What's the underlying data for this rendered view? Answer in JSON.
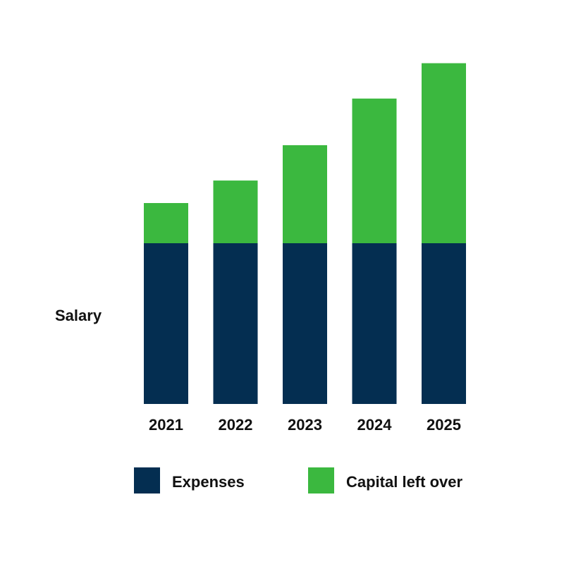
{
  "chart_data": {
    "type": "bar",
    "stacked": true,
    "title": "",
    "xlabel": "",
    "ylabel": "Salary",
    "categories": [
      "2021",
      "2022",
      "2023",
      "2024",
      "2025"
    ],
    "series": [
      {
        "name": "Expenses",
        "color": "#042e51",
        "values": [
          100,
          100,
          100,
          100,
          100
        ]
      },
      {
        "name": "Capital left over",
        "color": "#3bb83f",
        "values": [
          25,
          39,
          61,
          90,
          112
        ]
      }
    ],
    "ylim": [
      0,
      212
    ],
    "grid": false,
    "legend_placement": "bottom"
  }
}
